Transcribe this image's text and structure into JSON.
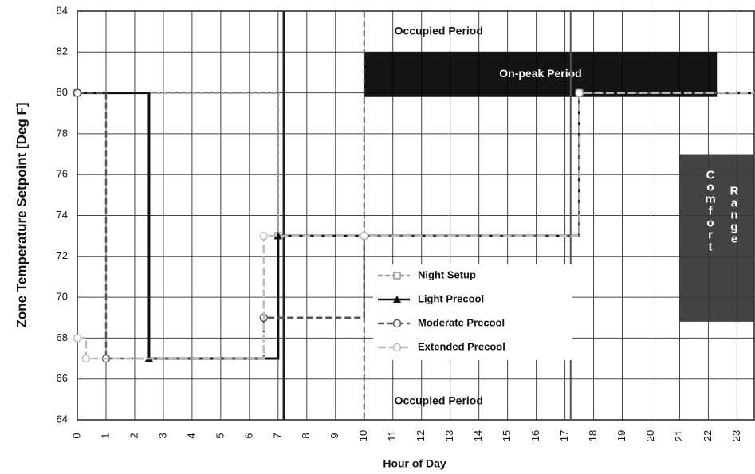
{
  "chart_data": {
    "type": "line",
    "step": "post",
    "xlabel": "Hour of Day",
    "ylabel": "Zone Temperature Setpoint [Deg F]",
    "xlim": [
      0,
      23.6
    ],
    "xticks": [
      0,
      1,
      2,
      3,
      4,
      5,
      6,
      7,
      8,
      9,
      10,
      11,
      12,
      13,
      14,
      15,
      16,
      17,
      18,
      19,
      20,
      21,
      22,
      23
    ],
    "ylim": [
      64,
      84
    ],
    "yticks": [
      64,
      66,
      68,
      70,
      72,
      74,
      76,
      78,
      80,
      82,
      84
    ],
    "grid": true,
    "legend": "center",
    "series": [
      {
        "name": "Night Setup",
        "color": "#999999",
        "marker": "square",
        "dash": "6,3",
        "x": [
          0,
          7,
          17.5,
          24
        ],
        "values": [
          80,
          73,
          80,
          80
        ]
      },
      {
        "name": "Light Precool",
        "color": "#111111",
        "marker": "triangle",
        "dash": "",
        "x": [
          0,
          2.5,
          7,
          17.5,
          24
        ],
        "values": [
          80,
          67,
          73,
          80,
          80
        ]
      },
      {
        "name": "Moderate Precool",
        "color": "#555555",
        "marker": "circle",
        "dash": "8,4",
        "x": [
          0,
          1,
          6.5,
          10,
          17.5,
          24
        ],
        "values": [
          80,
          67,
          69,
          73,
          80,
          80
        ]
      },
      {
        "name": "Extended Precool",
        "color": "#bbbbbb",
        "marker": "circle",
        "dash": "10,4",
        "x": [
          0,
          0.3,
          6.5,
          10,
          17.5,
          24
        ],
        "values": [
          68,
          67,
          73,
          73,
          80,
          80
        ]
      }
    ],
    "regions": [
      {
        "label": "On-peak Period",
        "x": [
          10,
          22.3
        ],
        "y": [
          79.8,
          82
        ],
        "color": "#000000",
        "text_color": "#ffffff"
      },
      {
        "label": "Comfort",
        "label2": "Range",
        "x": [
          21,
          24
        ],
        "y": [
          68.8,
          77
        ],
        "color": "#333333",
        "text_color": "#ffffff"
      }
    ],
    "annotations": [
      {
        "text": "Occupied Period",
        "x": 12.6,
        "y": 83
      },
      {
        "text": "Occupied Period",
        "x": 12.6,
        "y": 64.9
      }
    ],
    "vlines": [
      7.2,
      10,
      17.2
    ]
  }
}
